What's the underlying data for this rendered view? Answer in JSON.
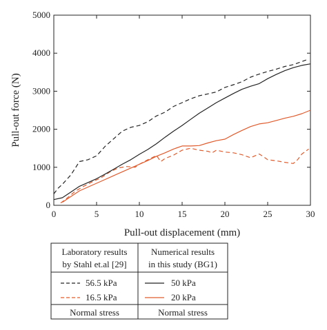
{
  "chart_data": {
    "type": "line",
    "title": "",
    "xlabel": "Pull-out displacement (mm)",
    "ylabel": "Pull-out force (N)",
    "xlim": [
      0,
      30
    ],
    "ylim": [
      0,
      5000
    ],
    "xticks": [
      0,
      5,
      10,
      15,
      20,
      25,
      30
    ],
    "yticks": [
      0,
      1000,
      2000,
      3000,
      4000,
      5000
    ],
    "grid": false,
    "legend": {
      "placement": "below-plot",
      "col1_header_line1": "Laboratory results",
      "col1_header_line2": "by Stahl et.al [29]",
      "col2_header_line1": "Numerical results",
      "col2_header_line2": "in this study (BG1)",
      "col1_footer": "Normal stress",
      "col2_footer": "Normal stress"
    },
    "series": [
      {
        "name": "56.5 kPa",
        "group": "lab",
        "color": "#222222",
        "dash": "dashed",
        "points": [
          [
            0,
            300
          ],
          [
            0.5,
            450
          ],
          [
            1,
            550
          ],
          [
            2,
            800
          ],
          [
            3,
            1150
          ],
          [
            4,
            1200
          ],
          [
            5,
            1300
          ],
          [
            6,
            1550
          ],
          [
            7,
            1750
          ],
          [
            8,
            1950
          ],
          [
            9,
            2050
          ],
          [
            10,
            2100
          ],
          [
            11,
            2200
          ],
          [
            12,
            2350
          ],
          [
            13,
            2450
          ],
          [
            14,
            2600
          ],
          [
            15,
            2700
          ],
          [
            16,
            2800
          ],
          [
            17,
            2880
          ],
          [
            18,
            2930
          ],
          [
            19,
            2980
          ],
          [
            20,
            3100
          ],
          [
            21,
            3170
          ],
          [
            22,
            3250
          ],
          [
            23,
            3370
          ],
          [
            24,
            3450
          ],
          [
            25,
            3520
          ],
          [
            26,
            3580
          ],
          [
            27,
            3650
          ],
          [
            28,
            3700
          ],
          [
            29,
            3780
          ],
          [
            29.5,
            3820
          ]
        ]
      },
      {
        "name": "16.5 kPa",
        "group": "lab",
        "color": "#e05a2b",
        "dash": "dashed",
        "points": [
          [
            0.8,
            60
          ],
          [
            1.5,
            180
          ],
          [
            2.5,
            370
          ],
          [
            3.5,
            500
          ],
          [
            4.5,
            620
          ],
          [
            5.5,
            720
          ],
          [
            6.5,
            870
          ],
          [
            7.5,
            980
          ],
          [
            8.5,
            1020
          ],
          [
            9.5,
            1000
          ],
          [
            10,
            1080
          ],
          [
            11,
            1200
          ],
          [
            12,
            1310
          ],
          [
            12.5,
            1150
          ],
          [
            13,
            1230
          ],
          [
            14,
            1320
          ],
          [
            15,
            1450
          ],
          [
            16,
            1500
          ],
          [
            17,
            1450
          ],
          [
            18,
            1420
          ],
          [
            18.5,
            1380
          ],
          [
            19,
            1450
          ],
          [
            20,
            1400
          ],
          [
            21,
            1380
          ],
          [
            22,
            1330
          ],
          [
            23,
            1250
          ],
          [
            24,
            1350
          ],
          [
            24.5,
            1280
          ],
          [
            25,
            1200
          ],
          [
            26,
            1170
          ],
          [
            27,
            1130
          ],
          [
            28,
            1100
          ],
          [
            28.5,
            1200
          ],
          [
            29,
            1350
          ],
          [
            29.8,
            1480
          ]
        ]
      },
      {
        "name": "50 kPa",
        "group": "numerical",
        "color": "#222222",
        "dash": "solid",
        "points": [
          [
            0,
            150
          ],
          [
            1,
            200
          ],
          [
            2,
            350
          ],
          [
            3,
            500
          ],
          [
            4,
            600
          ],
          [
            5,
            700
          ],
          [
            6,
            820
          ],
          [
            7,
            950
          ],
          [
            8,
            1080
          ],
          [
            9,
            1200
          ],
          [
            10,
            1340
          ],
          [
            11,
            1470
          ],
          [
            12,
            1620
          ],
          [
            13,
            1790
          ],
          [
            14,
            1950
          ],
          [
            15,
            2100
          ],
          [
            16,
            2260
          ],
          [
            17,
            2420
          ],
          [
            18,
            2560
          ],
          [
            19,
            2700
          ],
          [
            20,
            2820
          ],
          [
            21,
            2940
          ],
          [
            22,
            3050
          ],
          [
            23,
            3130
          ],
          [
            24,
            3200
          ],
          [
            25,
            3330
          ],
          [
            26,
            3440
          ],
          [
            27,
            3540
          ],
          [
            28,
            3620
          ],
          [
            29,
            3680
          ],
          [
            30,
            3720
          ]
        ]
      },
      {
        "name": "20 kPa",
        "group": "numerical",
        "color": "#e05a2b",
        "dash": "solid",
        "points": [
          [
            1,
            80
          ],
          [
            2,
            230
          ],
          [
            3,
            380
          ],
          [
            4,
            480
          ],
          [
            5,
            580
          ],
          [
            6,
            680
          ],
          [
            7,
            780
          ],
          [
            8,
            880
          ],
          [
            9,
            980
          ],
          [
            10,
            1080
          ],
          [
            11,
            1180
          ],
          [
            12,
            1290
          ],
          [
            13,
            1380
          ],
          [
            14,
            1480
          ],
          [
            15,
            1560
          ],
          [
            16,
            1560
          ],
          [
            17,
            1570
          ],
          [
            18,
            1640
          ],
          [
            19,
            1700
          ],
          [
            20,
            1740
          ],
          [
            21,
            1860
          ],
          [
            22,
            1970
          ],
          [
            23,
            2070
          ],
          [
            24,
            2140
          ],
          [
            25,
            2170
          ],
          [
            26,
            2230
          ],
          [
            27,
            2290
          ],
          [
            28,
            2340
          ],
          [
            29,
            2410
          ],
          [
            30,
            2500
          ]
        ]
      }
    ]
  }
}
